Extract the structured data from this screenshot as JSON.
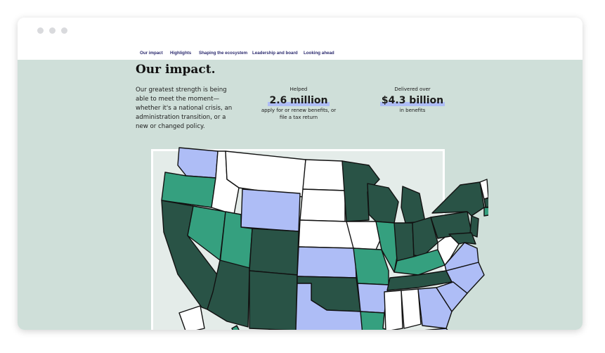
{
  "browser": {
    "dots": [
      "close",
      "minimize",
      "maximize"
    ]
  },
  "nav": {
    "items": [
      "Our impact",
      "Highlights",
      "Shaping the ecosystem",
      "Leadership and board",
      "Looking ahead"
    ]
  },
  "hero": {
    "title": "Our impact.",
    "lede": "Our greatest strength is being able to meet the moment—whether it's a national crisis, an administration transition, or a new or changed policy."
  },
  "stats": [
    {
      "top": "Helped",
      "value": "2.6 million",
      "bottom": "apply for or renew benefits, or file a tax return"
    },
    {
      "top": "Delivered over",
      "value": "$4.3 billion",
      "bottom": "in benefits"
    }
  ],
  "map": {
    "legend_colors": {
      "dark": "#295346",
      "medium": "#35a07f",
      "light": "#aebdf6",
      "none": "#ffffff"
    }
  }
}
